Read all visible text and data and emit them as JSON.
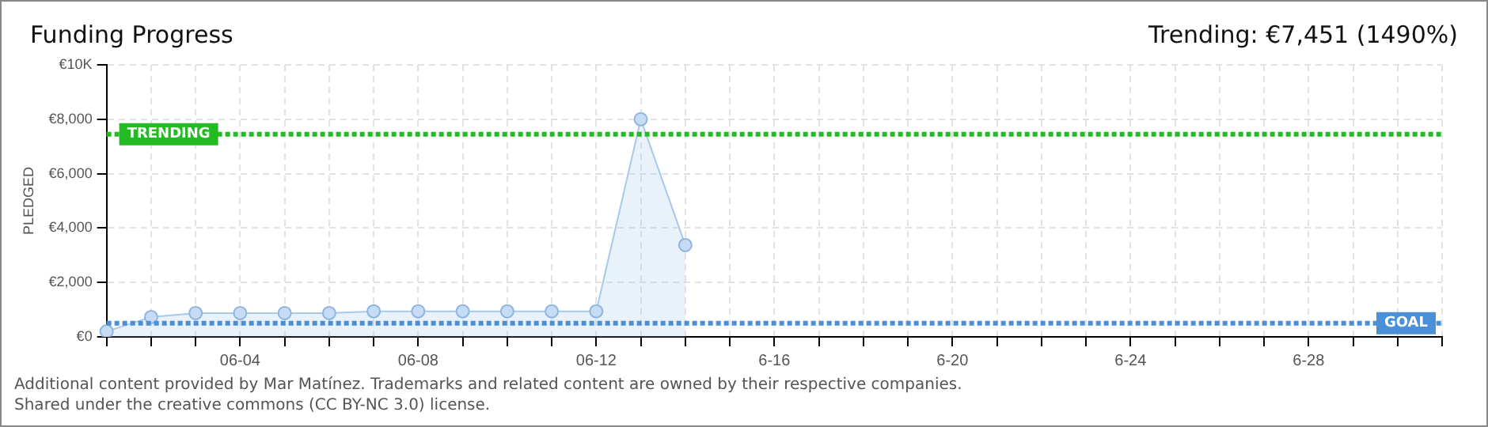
{
  "chart_data": {
    "type": "area",
    "title": "Funding Progress",
    "subtitle": "Trending: €7,451 (1490%)",
    "ylabel": "PLEDGED",
    "categories": [
      null,
      null,
      null,
      "06-04",
      null,
      null,
      null,
      "06-08",
      null,
      null,
      null,
      "06-12",
      null,
      null,
      null,
      "6-16",
      null,
      null,
      null,
      "6-20",
      null,
      null,
      null,
      "6-24",
      null,
      null,
      null,
      "6-28",
      null,
      null,
      null
    ],
    "series": [
      {
        "color": "#a8c8ec",
        "values": [
          200,
          730,
          875,
          875,
          875,
          875,
          940,
          940,
          940,
          940,
          940,
          940,
          8000,
          3375,
          null,
          null,
          null,
          null,
          null,
          null,
          null,
          null,
          null,
          null,
          null,
          null,
          null,
          null,
          null,
          null,
          null
        ]
      }
    ],
    "ylim": [
      0,
      10000
    ],
    "yticks": [
      {
        "value": 0,
        "label": "€0"
      },
      {
        "value": 2000,
        "label": "€2,000"
      },
      {
        "value": 4000,
        "label": "€4,000"
      },
      {
        "value": 6000,
        "label": "€6,000"
      },
      {
        "value": 8000,
        "label": "€8,000"
      },
      {
        "value": 10000,
        "label": "€10K"
      }
    ],
    "ref_lines": [
      {
        "axis": "y",
        "value": 7451,
        "label": "TRENDING",
        "color": "#22bb22",
        "line_style": "dotted"
      },
      {
        "axis": "y",
        "value": 500,
        "label": "GOAL",
        "color": "#4a90d9",
        "line_style": "dotted"
      }
    ],
    "grid": true,
    "marker": "circle",
    "legend": false,
    "annotations": [
      "Additional content provided by Mar Matínez. Trademarks and related content are owned by their respective companies.",
      "Shared under the creative commons (CC BY-NC 3.0) license."
    ]
  }
}
